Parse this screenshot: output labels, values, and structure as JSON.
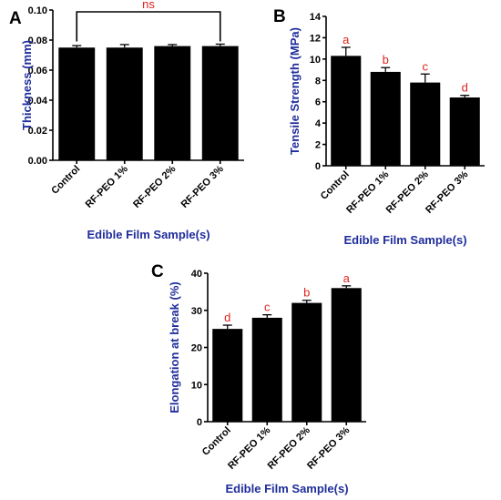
{
  "chart_data": [
    {
      "type": "bar",
      "panel": "A",
      "categories": [
        "Control",
        "RF-PEO 1%",
        "RF-PEO 2%",
        "RF-PEO 3%"
      ],
      "values": [
        0.075,
        0.075,
        0.076,
        0.076
      ],
      "errors": [
        0.0013,
        0.002,
        0.001,
        0.0013
      ],
      "ylabel": "Thickness (mm)",
      "xlabel": "Edible Film Sample(s)",
      "ylim": [
        0,
        0.1
      ],
      "yticks": [
        0.0,
        0.02,
        0.04,
        0.06,
        0.08,
        0.1
      ],
      "yticklabels": [
        "0.00",
        "0.02",
        "0.04",
        "0.06",
        "0.08",
        "0.10"
      ],
      "bracket_label": "ns",
      "colors": {
        "bar": "#000000",
        "axis_title": "#1f2d9c",
        "annotation": "#e0231e"
      },
      "grid": false
    },
    {
      "type": "bar",
      "panel": "B",
      "categories": [
        "Control",
        "RF-PEO 1%",
        "RF-PEO 2%",
        "RF-PEO 3%"
      ],
      "values": [
        10.3,
        8.8,
        7.8,
        6.4
      ],
      "errors": [
        0.8,
        0.4,
        0.8,
        0.2
      ],
      "annotations": [
        "a",
        "b",
        "c",
        "d"
      ],
      "ylabel": "Tensile Strength (MPa)",
      "xlabel": "Edible Film Sample(s)",
      "ylim": [
        0,
        14
      ],
      "yticks": [
        0,
        2,
        4,
        6,
        8,
        10,
        12,
        14
      ],
      "yticklabels": [
        "0",
        "2",
        "4",
        "6",
        "8",
        "10",
        "12",
        "14"
      ],
      "colors": {
        "bar": "#000000",
        "axis_title": "#1f2d9c",
        "annotation": "#e0231e"
      },
      "grid": false
    },
    {
      "type": "bar",
      "panel": "C",
      "categories": [
        "Control",
        "RF-PEO 1%",
        "RF-PEO 2%",
        "RF-PEO 3%"
      ],
      "values": [
        25,
        28,
        32,
        36
      ],
      "errors": [
        1.0,
        0.8,
        0.7,
        0.6
      ],
      "annotations": [
        "d",
        "c",
        "b",
        "a"
      ],
      "ylabel": "Elongation at break (%)",
      "xlabel": "Edible Film Sample(s)",
      "ylim": [
        0,
        40
      ],
      "yticks": [
        0,
        10,
        20,
        30,
        40
      ],
      "yticklabels": [
        "0",
        "10",
        "20",
        "30",
        "40"
      ],
      "colors": {
        "bar": "#000000",
        "axis_title": "#1f2d9c",
        "annotation": "#e0231e"
      },
      "grid": false
    }
  ]
}
